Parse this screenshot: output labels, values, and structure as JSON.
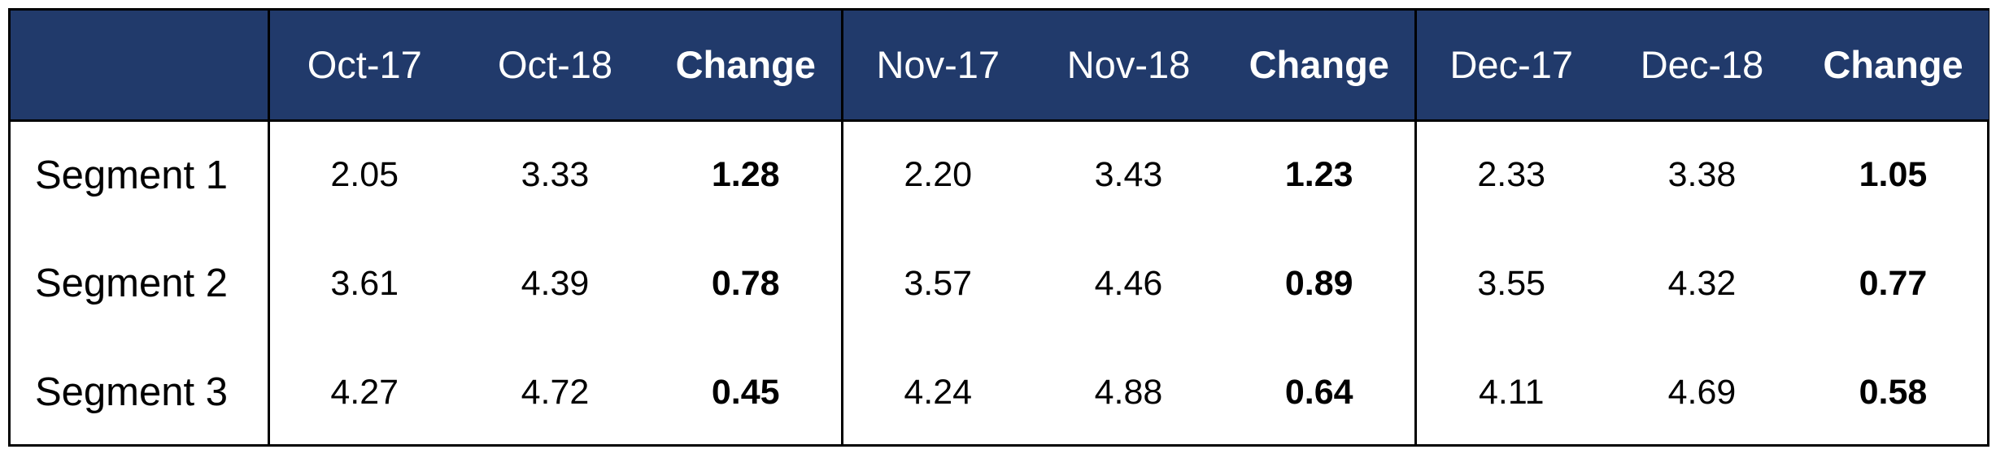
{
  "table": {
    "headers": [
      {
        "label": "",
        "style": "label"
      },
      {
        "label": "Oct-17",
        "style": "normal"
      },
      {
        "label": "Oct-18",
        "style": "normal"
      },
      {
        "label": "Change",
        "style": "change"
      },
      {
        "label": "Nov-17",
        "style": "normal"
      },
      {
        "label": "Nov-18",
        "style": "normal"
      },
      {
        "label": "Change",
        "style": "change"
      },
      {
        "label": "Dec-17",
        "style": "normal"
      },
      {
        "label": "Dec-18",
        "style": "normal"
      },
      {
        "label": "Change",
        "style": "change"
      }
    ],
    "rows": [
      {
        "label": "Segment 1",
        "cells": [
          "2.05",
          "3.33",
          "1.28",
          "2.20",
          "3.43",
          "1.23",
          "2.33",
          "3.38",
          "1.05"
        ]
      },
      {
        "label": "Segment 2",
        "cells": [
          "3.61",
          "4.39",
          "0.78",
          "3.57",
          "4.46",
          "0.89",
          "3.55",
          "4.32",
          "0.77"
        ]
      },
      {
        "label": "Segment 3",
        "cells": [
          "4.27",
          "4.72",
          "0.45",
          "4.24",
          "4.88",
          "0.64",
          "4.11",
          "4.69",
          "0.58"
        ]
      }
    ]
  },
  "colors": {
    "header_background": "#213a6b",
    "header_text": "#ffffff",
    "border": "#000000"
  }
}
